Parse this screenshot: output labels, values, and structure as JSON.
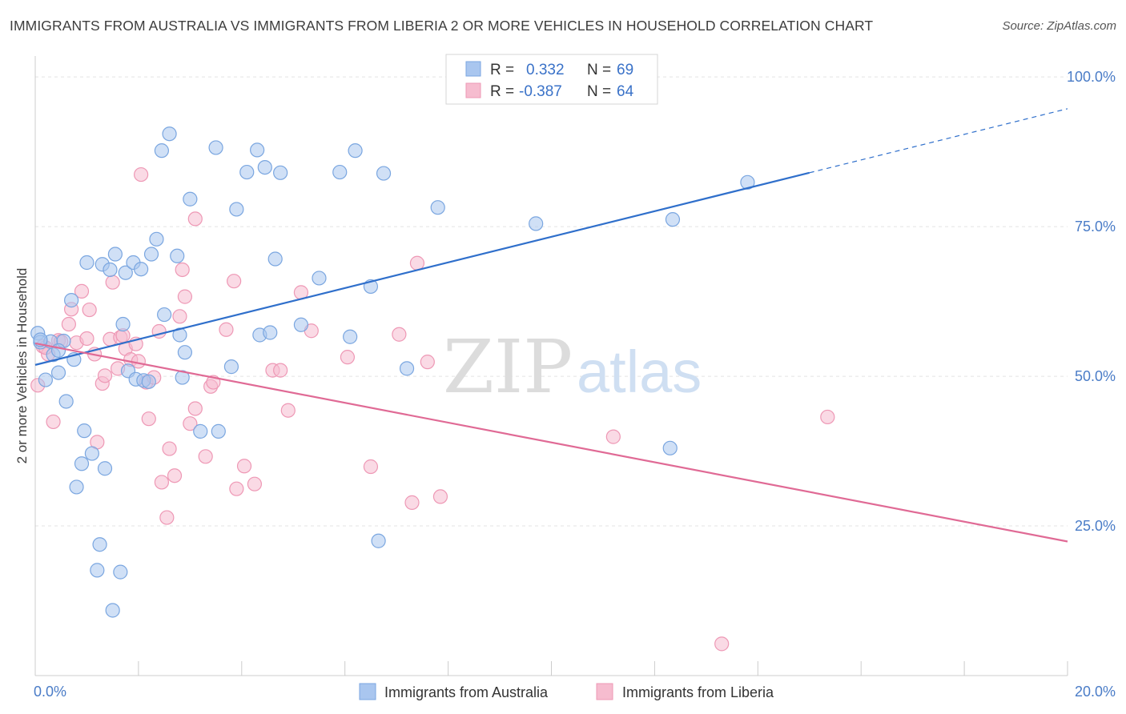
{
  "chart_data": {
    "type": "scatter",
    "title": "IMMIGRANTS FROM AUSTRALIA VS IMMIGRANTS FROM LIBERIA 2 OR MORE VEHICLES IN HOUSEHOLD CORRELATION CHART",
    "source": "Source: ZipAtlas.com",
    "xlabel": "",
    "ylabel": "2 or more Vehicles in Household",
    "xlim": [
      0,
      20
    ],
    "ylim": [
      0,
      103.5
    ],
    "x_tick_labels": [
      {
        "value": 0,
        "label": "0.0%"
      },
      {
        "value": 20,
        "label": "20.0%"
      }
    ],
    "y_tick_labels": [
      {
        "value": 25,
        "label": "25.0%"
      },
      {
        "value": 50,
        "label": "50.0%"
      },
      {
        "value": 75,
        "label": "75.0%"
      },
      {
        "value": 100,
        "label": "100.0%"
      }
    ],
    "grid": true,
    "watermark": {
      "part1": "ZIP",
      "part2": "atlas"
    },
    "legend_top": [
      {
        "r_label": "R =",
        "r_value": "0.332",
        "n_label": "N =",
        "n_value": "69"
      },
      {
        "r_label": "R =",
        "r_value": "-0.387",
        "n_label": "N =",
        "n_value": "64"
      }
    ],
    "colors": {
      "australia_fill": "#a9c6ef",
      "australia_stroke": "#7aa6e0",
      "australia_line": "#2f6fcb",
      "liberia_fill": "#f6bccf",
      "liberia_stroke": "#ee98b5",
      "liberia_line": "#e06a95",
      "value_text": "#3a72c8",
      "axis_text": "#4a7cc7"
    },
    "series": [
      {
        "name": "Immigrants from Australia",
        "trend": {
          "x0": 0,
          "y0": 51.9,
          "x1": 15,
          "y1": 84.0,
          "dash_x1": 20,
          "dash_y1": 94.7
        },
        "points": [
          [
            0.05,
            57.2
          ],
          [
            0.1,
            55.7
          ],
          [
            0.2,
            49.4
          ],
          [
            0.3,
            55.8
          ],
          [
            0.35,
            53.6
          ],
          [
            0.45,
            50.6
          ],
          [
            0.55,
            55.9
          ],
          [
            0.6,
            45.8
          ],
          [
            0.7,
            62.7
          ],
          [
            0.75,
            52.8
          ],
          [
            0.8,
            31.5
          ],
          [
            0.9,
            35.4
          ],
          [
            0.95,
            40.9
          ],
          [
            1.0,
            69.0
          ],
          [
            1.1,
            37.1
          ],
          [
            1.2,
            17.6
          ],
          [
            1.25,
            21.9
          ],
          [
            1.3,
            68.7
          ],
          [
            1.35,
            34.6
          ],
          [
            1.45,
            67.8
          ],
          [
            1.5,
            10.9
          ],
          [
            1.55,
            70.4
          ],
          [
            1.65,
            17.3
          ],
          [
            1.7,
            58.7
          ],
          [
            1.75,
            67.3
          ],
          [
            1.8,
            50.9
          ],
          [
            1.9,
            69.0
          ],
          [
            1.95,
            49.5
          ],
          [
            2.05,
            67.9
          ],
          [
            2.1,
            49.3
          ],
          [
            2.2,
            49.1
          ],
          [
            2.25,
            70.4
          ],
          [
            2.35,
            72.9
          ],
          [
            2.45,
            87.7
          ],
          [
            2.5,
            60.3
          ],
          [
            2.6,
            90.5
          ],
          [
            2.75,
            70.1
          ],
          [
            2.8,
            56.9
          ],
          [
            2.85,
            49.8
          ],
          [
            2.9,
            54.0
          ],
          [
            3.0,
            79.6
          ],
          [
            3.2,
            40.8
          ],
          [
            3.55,
            40.8
          ],
          [
            3.5,
            88.2
          ],
          [
            3.8,
            51.6
          ],
          [
            3.9,
            77.9
          ],
          [
            4.1,
            84.1
          ],
          [
            4.3,
            87.8
          ],
          [
            4.35,
            56.9
          ],
          [
            4.45,
            84.9
          ],
          [
            4.55,
            57.3
          ],
          [
            4.65,
            69.6
          ],
          [
            4.75,
            84.0
          ],
          [
            5.15,
            58.6
          ],
          [
            5.5,
            66.4
          ],
          [
            5.9,
            84.1
          ],
          [
            6.1,
            56.6
          ],
          [
            6.2,
            87.7
          ],
          [
            6.5,
            65.0
          ],
          [
            6.65,
            22.5
          ],
          [
            6.75,
            83.9
          ],
          [
            7.2,
            51.3
          ],
          [
            7.8,
            78.2
          ],
          [
            9.7,
            75.5
          ],
          [
            12.3,
            38.0
          ],
          [
            12.35,
            76.2
          ],
          [
            13.8,
            82.4
          ],
          [
            0.1,
            56.1
          ],
          [
            0.45,
            54.3
          ]
        ]
      },
      {
        "name": "Immigrants from Liberia",
        "trend": {
          "x0": 0,
          "y0": 55.5,
          "x1": 20,
          "y1": 22.4
        },
        "points": [
          [
            0.05,
            48.5
          ],
          [
            0.15,
            55.0
          ],
          [
            0.25,
            53.7
          ],
          [
            0.35,
            42.4
          ],
          [
            0.45,
            56.0
          ],
          [
            0.5,
            55.8
          ],
          [
            0.65,
            58.7
          ],
          [
            0.7,
            61.2
          ],
          [
            0.8,
            55.6
          ],
          [
            0.9,
            64.2
          ],
          [
            1.0,
            56.3
          ],
          [
            1.05,
            61.1
          ],
          [
            1.15,
            53.7
          ],
          [
            1.2,
            39.0
          ],
          [
            1.3,
            48.8
          ],
          [
            1.35,
            50.1
          ],
          [
            1.45,
            56.2
          ],
          [
            1.5,
            65.7
          ],
          [
            1.6,
            51.3
          ],
          [
            1.65,
            56.5
          ],
          [
            1.7,
            56.8
          ],
          [
            1.75,
            54.6
          ],
          [
            1.85,
            52.8
          ],
          [
            1.95,
            55.4
          ],
          [
            2.0,
            52.5
          ],
          [
            2.05,
            83.7
          ],
          [
            2.15,
            49.0
          ],
          [
            2.2,
            42.9
          ],
          [
            2.3,
            49.8
          ],
          [
            2.4,
            57.5
          ],
          [
            2.45,
            32.3
          ],
          [
            2.55,
            26.4
          ],
          [
            2.6,
            37.9
          ],
          [
            2.7,
            33.4
          ],
          [
            2.8,
            60.0
          ],
          [
            2.85,
            67.8
          ],
          [
            2.9,
            63.3
          ],
          [
            3.0,
            42.1
          ],
          [
            3.1,
            44.6
          ],
          [
            3.1,
            76.3
          ],
          [
            3.3,
            36.6
          ],
          [
            3.4,
            48.3
          ],
          [
            3.45,
            49.0
          ],
          [
            3.7,
            57.8
          ],
          [
            3.85,
            65.9
          ],
          [
            3.9,
            31.2
          ],
          [
            4.05,
            35.0
          ],
          [
            4.25,
            32.0
          ],
          [
            4.6,
            51.0
          ],
          [
            4.75,
            51.0
          ],
          [
            4.9,
            44.3
          ],
          [
            5.15,
            64.0
          ],
          [
            5.35,
            57.6
          ],
          [
            6.05,
            53.2
          ],
          [
            6.5,
            34.9
          ],
          [
            7.05,
            57.0
          ],
          [
            7.3,
            28.9
          ],
          [
            7.4,
            68.9
          ],
          [
            7.6,
            52.4
          ],
          [
            7.85,
            29.9
          ],
          [
            11.2,
            39.9
          ],
          [
            13.3,
            5.3
          ],
          [
            15.35,
            43.2
          ],
          [
            0.2,
            54.8
          ]
        ]
      }
    ]
  }
}
